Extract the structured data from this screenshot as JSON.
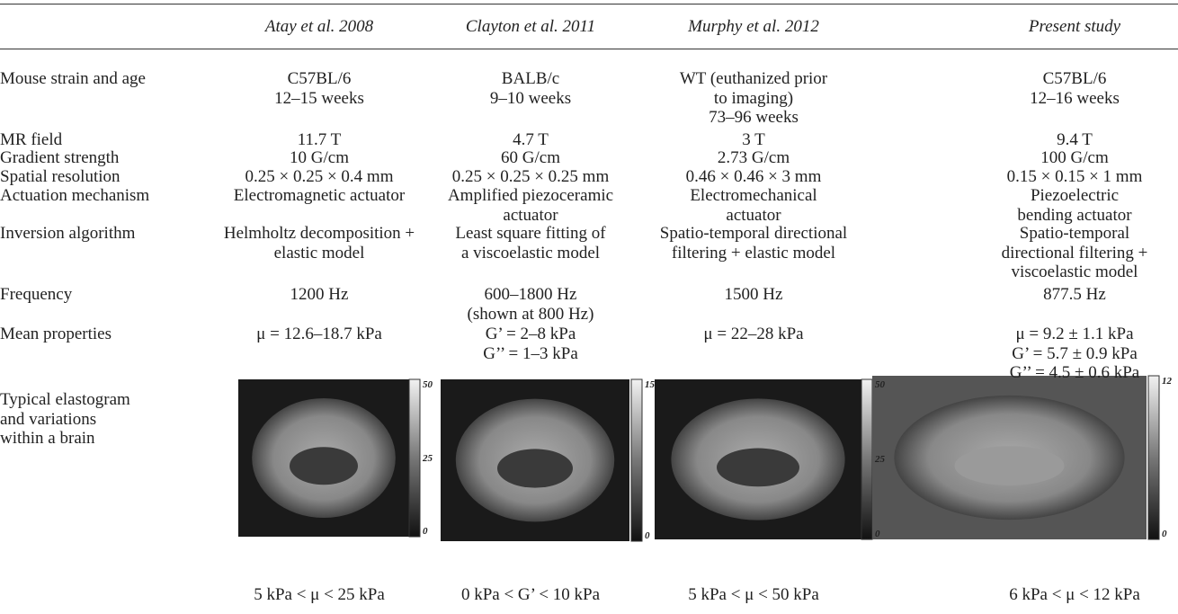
{
  "table": {
    "columns": [
      "Atay et al. 2008",
      "Clayton et al. 2011",
      "Murphy et al. 2012",
      "Present study"
    ],
    "rows": [
      {
        "label": [
          "Mouse strain and age"
        ],
        "cells": [
          [
            "C57BL/6",
            "12–15 weeks"
          ],
          [
            "BALB/c",
            "9–10 weeks"
          ],
          [
            "WT (euthanized prior",
            "to imaging)",
            "73–96 weeks"
          ],
          [
            "C57BL/6",
            "12–16 weeks"
          ]
        ]
      },
      {
        "label": [
          "MR field"
        ],
        "cells": [
          [
            "11.7 T"
          ],
          [
            "4.7 T"
          ],
          [
            "3 T"
          ],
          [
            "9.4 T"
          ]
        ]
      },
      {
        "label": [
          "Gradient strength"
        ],
        "cells": [
          [
            "10 G/cm"
          ],
          [
            "60 G/cm"
          ],
          [
            "2.73 G/cm"
          ],
          [
            "100 G/cm"
          ]
        ]
      },
      {
        "label": [
          "Spatial resolution"
        ],
        "cells": [
          [
            "0.25 × 0.25 × 0.4 mm"
          ],
          [
            "0.25 × 0.25 × 0.25 mm"
          ],
          [
            "0.46 × 0.46 × 3 mm"
          ],
          [
            "0.15 × 0.15 × 1 mm"
          ]
        ]
      },
      {
        "label": [
          "Actuation mechanism"
        ],
        "cells": [
          [
            "Electromagnetic actuator"
          ],
          [
            "Amplified piezoceramic",
            "actuator"
          ],
          [
            "Electromechanical",
            "actuator"
          ],
          [
            "Piezoelectric",
            "bending actuator"
          ]
        ]
      },
      {
        "label": [
          "Inversion algorithm"
        ],
        "cells": [
          [
            "Helmholtz decomposition +",
            "elastic model"
          ],
          [
            "Least square fitting of",
            "a viscoelastic model"
          ],
          [
            "Spatio-temporal directional",
            "filtering + elastic model"
          ],
          [
            "Spatio-temporal",
            "directional filtering +",
            "viscoelastic model"
          ]
        ]
      },
      {
        "label": [
          "Frequency"
        ],
        "cells": [
          [
            "1200 Hz"
          ],
          [
            "600–1800 Hz",
            "(shown at 800 Hz)"
          ],
          [
            "1500 Hz"
          ],
          [
            "877.5 Hz"
          ]
        ]
      },
      {
        "label": [
          "Mean properties"
        ],
        "cells": [
          [
            "μ = 12.6–18.7 kPa"
          ],
          [
            "G’ = 2–8 kPa",
            "G’’ = 1–3 kPa"
          ],
          [
            "μ = 22–28 kPa"
          ],
          [
            "μ = 9.2 ± 1.1 kPa",
            "G’ = 5.7 ± 0.9 kPa",
            "G’’ = 4.5 ± 0.6 kPa"
          ]
        ]
      },
      {
        "label": [
          "Typical elastogram",
          "and variations",
          "within a brain"
        ],
        "cells": [
          [],
          [],
          [],
          []
        ]
      }
    ],
    "elastograms": [
      {
        "colorbar": [
          "50",
          "25",
          "0"
        ],
        "range": "5 kPa < μ < 25 kPa"
      },
      {
        "colorbar": [
          "15",
          "0"
        ],
        "range": "0 kPa < G’ < 10 kPa"
      },
      {
        "colorbar": [
          "50",
          "25",
          "0"
        ],
        "range": "5 kPa < μ < 50 kPa"
      },
      {
        "colorbar": [
          "12",
          "0"
        ],
        "range": "6 kPa < μ < 12 kPa"
      }
    ]
  }
}
